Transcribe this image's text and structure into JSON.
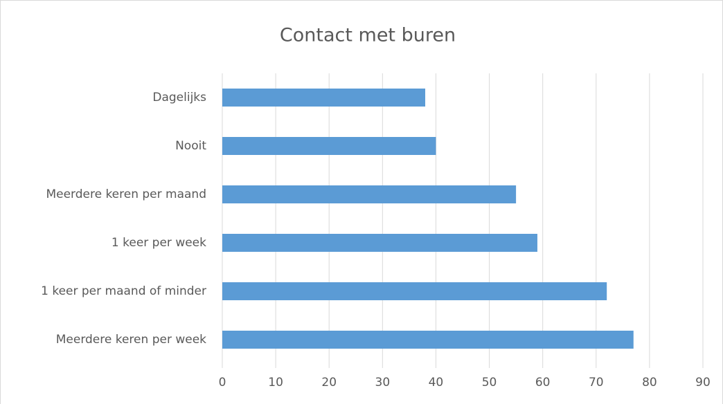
{
  "chart_data": {
    "type": "bar",
    "orientation": "horizontal",
    "title": "Contact met buren",
    "categories": [
      "Dagelijks",
      "Nooit",
      "Meerdere keren per maand",
      "1 keer per week",
      "1 keer per maand of minder",
      "Meerdere keren per week"
    ],
    "values": [
      38,
      40,
      55,
      59,
      72,
      77
    ],
    "color": "#5b9bd5",
    "xlim": [
      0,
      90
    ],
    "xticks": [
      0,
      10,
      20,
      30,
      40,
      50,
      60,
      70,
      80,
      90
    ],
    "grid": true
  }
}
